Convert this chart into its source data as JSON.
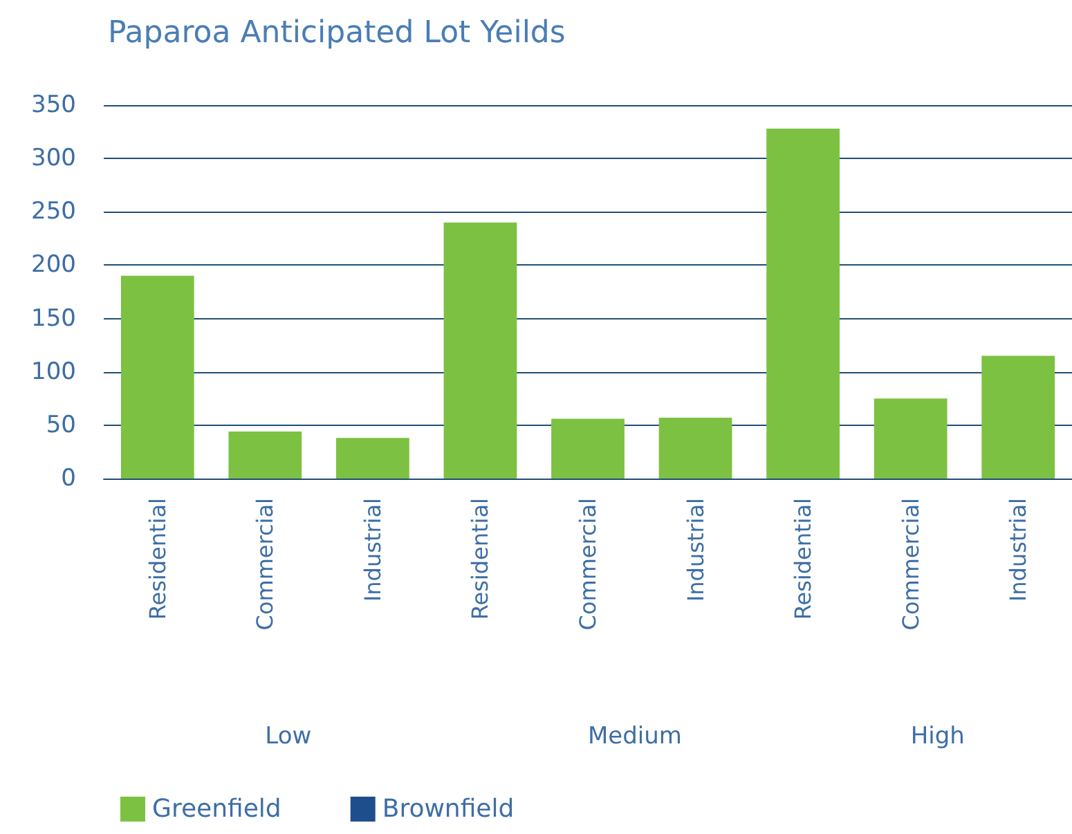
{
  "chart_data": {
    "type": "bar",
    "title": "Paparoa Anticipated Lot Yeilds",
    "categories": [
      "Residential",
      "Commercial",
      "Industrial",
      "Residential",
      "Commercial",
      "Industrial",
      "Residential",
      "Commercial",
      "Industrial"
    ],
    "series": [
      {
        "name": "Greenfield",
        "color": "#7dc142",
        "values": [
          190,
          44,
          38,
          240,
          56,
          57,
          328,
          75,
          115
        ]
      },
      {
        "name": "Brownfield",
        "color": "#1f4e8c",
        "values": [
          null,
          null,
          null,
          null,
          null,
          null,
          null,
          null,
          null
        ]
      }
    ],
    "stacked": true,
    "annotations": [
      "Low",
      "Medium",
      "High"
    ],
    "ylim": [
      0,
      350
    ],
    "yticks": [
      0,
      50,
      100,
      150,
      200,
      250,
      300,
      350
    ],
    "grid": "y",
    "legend": "bottom left"
  }
}
